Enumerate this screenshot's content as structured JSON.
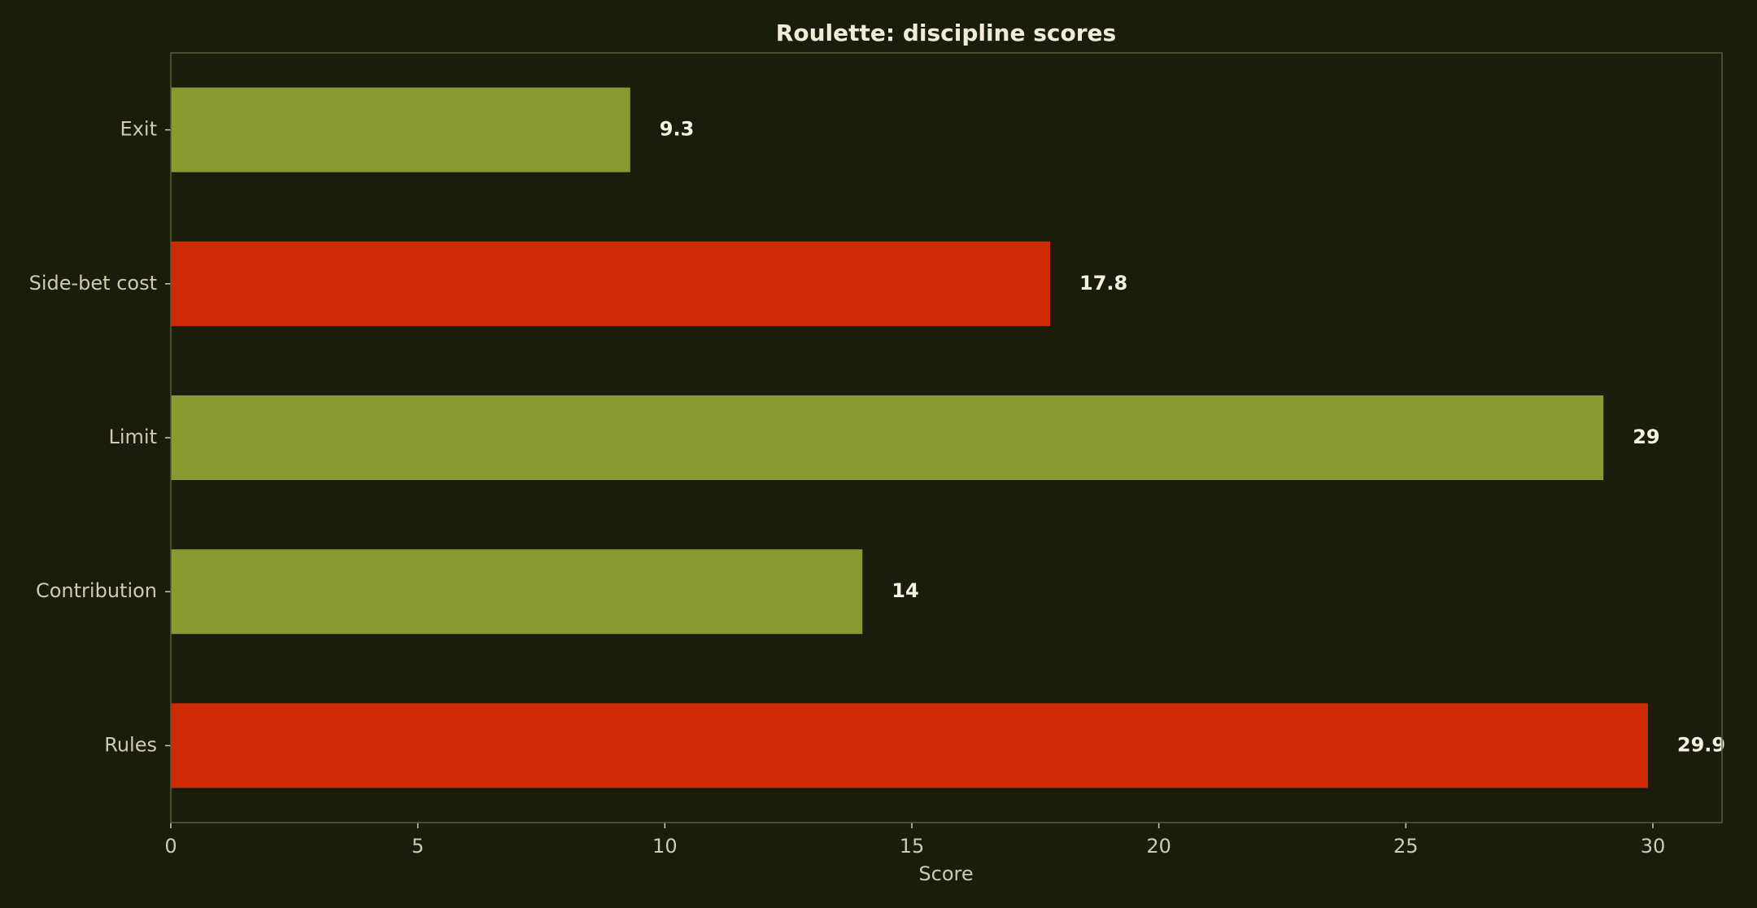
{
  "chart_data": {
    "type": "bar",
    "orientation": "horizontal",
    "title": "Roulette: discipline scores",
    "xlabel": "Score",
    "ylabel": "",
    "categories": [
      "Exit",
      "Side-bet cost",
      "Limit",
      "Contribution",
      "Rules"
    ],
    "values": [
      9.3,
      17.8,
      29,
      14,
      29.9
    ],
    "value_labels": [
      "9.3",
      "17.8",
      "29",
      "14",
      "29.9"
    ],
    "bar_colors": [
      "#8a9a33",
      "#cf2a08",
      "#8a9a33",
      "#8a9a33",
      "#cf2a08"
    ],
    "xlim": [
      0,
      31.4
    ],
    "xticks": [
      0,
      5,
      10,
      15,
      20,
      25,
      30
    ],
    "xtick_labels": [
      "0",
      "5",
      "10",
      "15",
      "20",
      "25",
      "30"
    ],
    "grid": false,
    "legend": "none"
  },
  "colors": {
    "background": "#1a1c0c",
    "frame": "#5a5c38",
    "text": "#cfcab0",
    "title": "#f0ecd8",
    "value_text": "#f6f2e0"
  }
}
